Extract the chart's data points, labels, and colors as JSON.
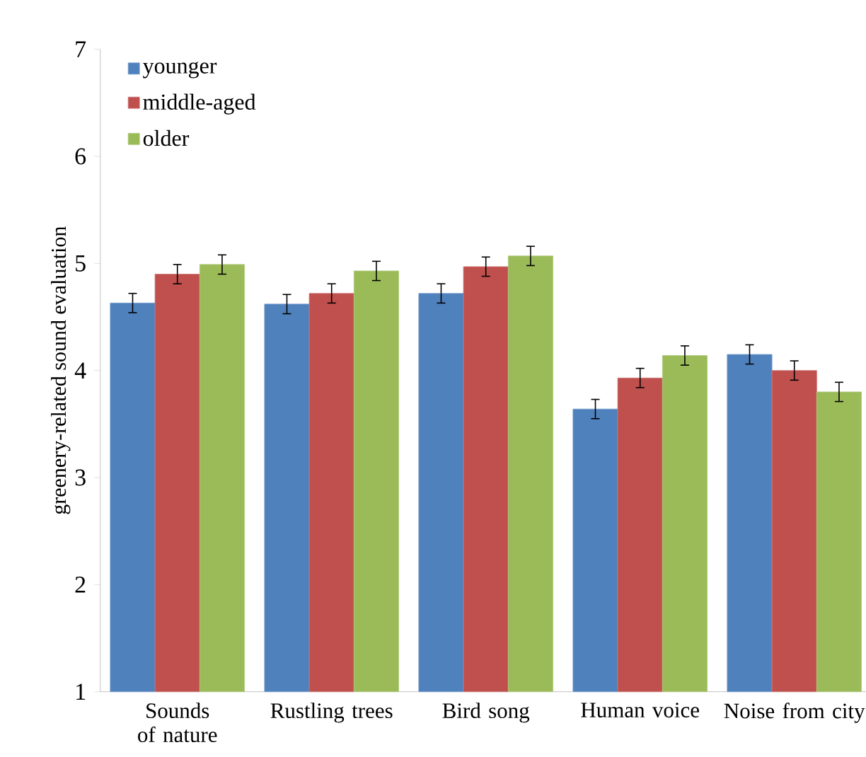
{
  "chart_data": {
    "type": "bar",
    "ylabel": "greenery-related sound evaluation",
    "categories": [
      "Sounds of nature",
      "Rustling trees",
      "Bird song",
      "Human voice",
      "Noise from city"
    ],
    "series": [
      {
        "name": "younger",
        "color": "#4f81bd",
        "values": [
          4.63,
          4.62,
          4.72,
          3.64,
          4.15
        ],
        "errors": [
          0.09,
          0.09,
          0.09,
          0.09,
          0.09
        ]
      },
      {
        "name": "middle-aged",
        "color": "#c0504d",
        "values": [
          4.9,
          4.72,
          4.97,
          3.93,
          4.0
        ],
        "errors": [
          0.09,
          0.09,
          0.09,
          0.09,
          0.09
        ]
      },
      {
        "name": "older",
        "color": "#9bbb59",
        "values": [
          4.99,
          4.93,
          5.07,
          4.14,
          3.8
        ],
        "errors": [
          0.09,
          0.09,
          0.09,
          0.09,
          0.09
        ]
      }
    ],
    "ylim": [
      1,
      7
    ],
    "yticks": [
      1,
      2,
      3,
      4,
      5,
      6,
      7
    ],
    "grid": false,
    "legend": "top left"
  }
}
